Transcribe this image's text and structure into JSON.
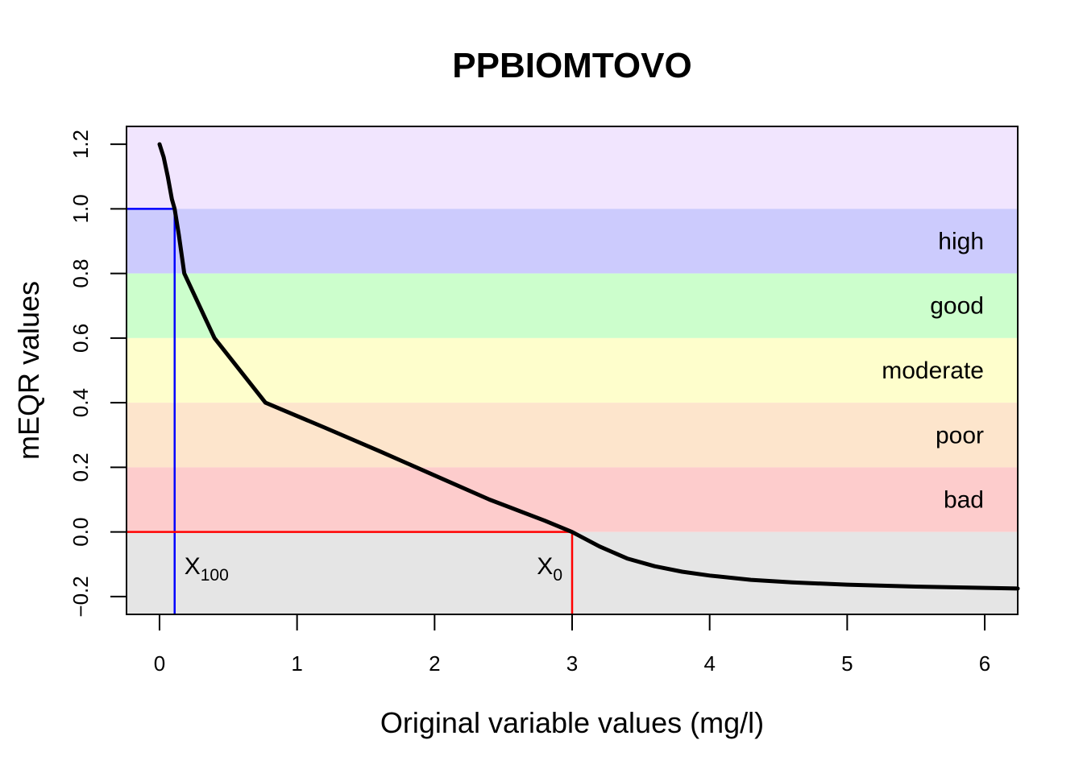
{
  "chart_data": {
    "type": "line",
    "title": "PPBIOMTOVO",
    "xlabel": "Original variable values (mg/l)",
    "ylabel": "mEQR values",
    "xlim": [
      -0.24,
      6.24
    ],
    "ylim": [
      -0.255,
      1.255
    ],
    "x_ticks": [
      0,
      1,
      2,
      3,
      4,
      5,
      6
    ],
    "x_tick_labels": [
      "0",
      "1",
      "2",
      "3",
      "4",
      "5",
      "6"
    ],
    "y_ticks": [
      -0.2,
      0.0,
      0.2,
      0.4,
      0.6,
      0.8,
      1.0,
      1.2
    ],
    "y_tick_labels": [
      "−0.2",
      "0.0",
      "0.2",
      "0.4",
      "0.6",
      "0.8",
      "1.0",
      "1.2"
    ],
    "grid": false,
    "bands": [
      {
        "name": "",
        "ymin": 1.0,
        "ymax": 1.255,
        "color": "#f1e5fe"
      },
      {
        "name": "high",
        "ymin": 0.8,
        "ymax": 1.0,
        "color": "#cccbfd"
      },
      {
        "name": "good",
        "ymin": 0.6,
        "ymax": 0.8,
        "color": "#ccfecc"
      },
      {
        "name": "moderate",
        "ymin": 0.4,
        "ymax": 0.6,
        "color": "#fefecc"
      },
      {
        "name": "poor",
        "ymin": 0.2,
        "ymax": 0.4,
        "color": "#fde5cc"
      },
      {
        "name": "bad",
        "ymin": 0.0,
        "ymax": 0.2,
        "color": "#fdcccc"
      },
      {
        "name": "",
        "ymin": -0.255,
        "ymax": 0.0,
        "color": "#e5e5e5"
      }
    ],
    "series": [
      {
        "color": "#000000",
        "x": [
          0.0,
          0.03,
          0.06,
          0.09,
          0.11,
          0.14,
          0.18,
          0.4,
          0.77,
          1.2,
          1.6,
          2.0,
          2.4,
          2.8,
          3.0,
          3.2,
          3.4,
          3.6,
          3.8,
          4.0,
          4.3,
          4.6,
          5.0,
          5.5,
          6.0,
          6.24
        ],
        "y": [
          1.2,
          1.16,
          1.1,
          1.03,
          1.0,
          0.92,
          0.8,
          0.6,
          0.4,
          0.323,
          0.25,
          0.175,
          0.1,
          0.035,
          0.0,
          -0.045,
          -0.082,
          -0.106,
          -0.123,
          -0.135,
          -0.148,
          -0.156,
          -0.163,
          -0.169,
          -0.173,
          -0.175
        ]
      }
    ],
    "reference_lines": [
      {
        "label": "X",
        "subscript": "100",
        "x": 0.11,
        "y": 1.0,
        "color": "#0000ff"
      },
      {
        "label": "X",
        "subscript": "0",
        "x": 3.0,
        "y": 0.0,
        "color": "#ff0000"
      }
    ]
  }
}
